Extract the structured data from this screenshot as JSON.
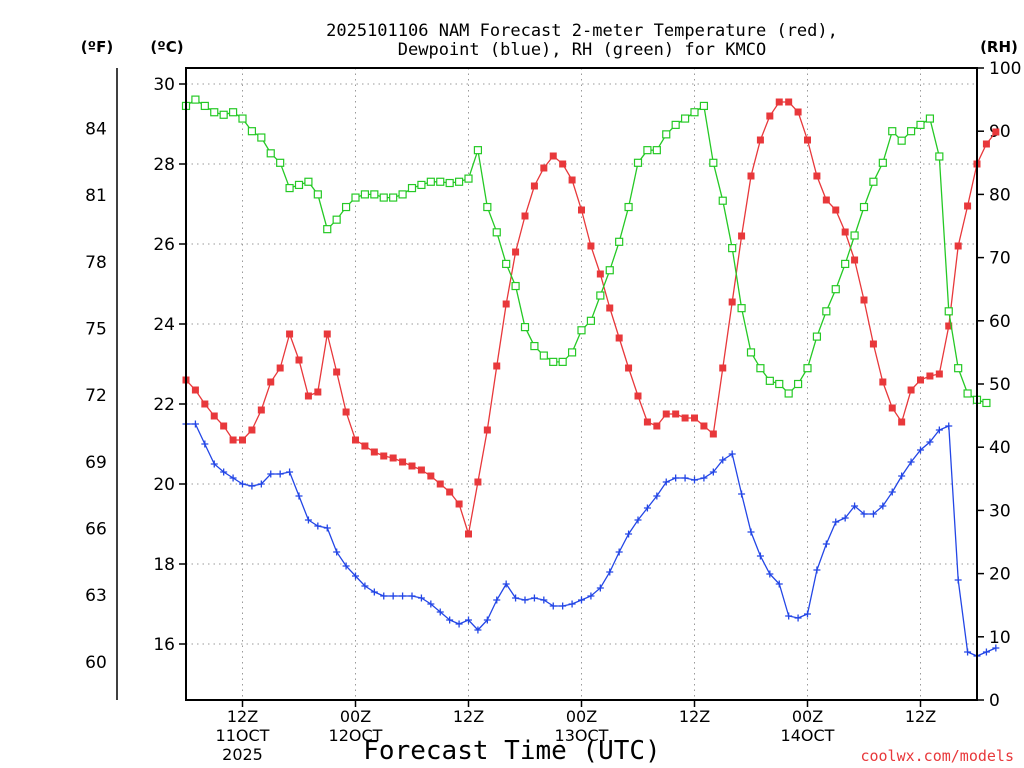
{
  "chart_data": {
    "type": "line",
    "title_line1": "2025101106 NAM Forecast 2-meter Temperature (red),",
    "title_line2": "Dewpoint (blue), RH (green) for KMCO",
    "unit_f": "(ºF)",
    "unit_c": "(ºC)",
    "unit_rh": "(RH)",
    "xlabel": "Forecast Time (UTC)",
    "credit": "coolwx.com/models",
    "x_range_hours": [
      0,
      84
    ],
    "ylim_c": [
      14.6,
      30.4
    ],
    "ylim_rh": [
      0,
      100
    ],
    "c_ticks": [
      "16",
      "18",
      "20",
      "22",
      "24",
      "26",
      "28",
      "30"
    ],
    "f_ticks": [
      "60",
      "63",
      "66",
      "69",
      "72",
      "75",
      "78",
      "81",
      "84"
    ],
    "rh_ticks": [
      "0",
      "10",
      "20",
      "30",
      "40",
      "50",
      "60",
      "70",
      "80",
      "90",
      "100"
    ],
    "x_ticks": [
      {
        "hour": 6,
        "line1": "12Z",
        "line2": "11OCT",
        "line3": "2025"
      },
      {
        "hour": 18,
        "line1": "00Z",
        "line2": "12OCT",
        "line3": ""
      },
      {
        "hour": 30,
        "line1": "12Z",
        "line2": "",
        "line3": ""
      },
      {
        "hour": 42,
        "line1": "00Z",
        "line2": "13OCT",
        "line3": ""
      },
      {
        "hour": 54,
        "line1": "12Z",
        "line2": "",
        "line3": ""
      },
      {
        "hour": 66,
        "line1": "00Z",
        "line2": "14OCT",
        "line3": ""
      },
      {
        "hour": 78,
        "line1": "12Z",
        "line2": "",
        "line3": ""
      }
    ],
    "series": [
      {
        "name": "Temperature",
        "units": "C",
        "color": "#e8383b",
        "marker": "filled-square",
        "values": [
          22.6,
          22.35,
          22.0,
          21.7,
          21.45,
          21.1,
          21.1,
          21.35,
          21.85,
          22.55,
          22.9,
          23.75,
          23.1,
          22.2,
          22.3,
          23.75,
          22.8,
          21.8,
          21.1,
          20.95,
          20.8,
          20.7,
          20.65,
          20.55,
          20.45,
          20.35,
          20.2,
          20.0,
          19.8,
          19.5,
          18.75,
          20.05,
          21.35,
          22.95,
          24.5,
          25.8,
          26.7,
          27.45,
          27.9,
          28.2,
          28.0,
          27.6,
          26.85,
          25.95,
          25.25,
          24.4,
          23.65,
          22.9,
          22.2,
          21.55,
          21.45,
          21.75,
          21.75,
          21.65,
          21.65,
          21.45,
          21.25,
          22.9,
          24.55,
          26.2,
          27.7,
          28.6,
          29.2,
          29.55,
          29.55,
          29.3,
          28.6,
          27.7,
          27.1,
          26.85,
          26.3,
          25.6,
          24.6,
          23.5,
          22.55,
          21.9,
          21.55,
          22.35,
          22.6,
          22.7,
          22.75,
          23.95,
          25.95,
          26.95,
          28.0,
          28.5,
          28.8
        ]
      },
      {
        "name": "Dewpoint",
        "units": "C",
        "color": "#2346e6",
        "marker": "plus",
        "values": [
          21.5,
          21.5,
          21.0,
          20.5,
          20.3,
          20.15,
          20.0,
          19.95,
          20.0,
          20.25,
          20.25,
          20.3,
          19.7,
          19.1,
          18.95,
          18.9,
          18.3,
          17.95,
          17.7,
          17.45,
          17.3,
          17.2,
          17.2,
          17.2,
          17.2,
          17.15,
          17.0,
          16.8,
          16.6,
          16.5,
          16.6,
          16.35,
          16.6,
          17.1,
          17.5,
          17.15,
          17.1,
          17.15,
          17.1,
          16.95,
          16.95,
          17.0,
          17.1,
          17.2,
          17.4,
          17.8,
          18.3,
          18.75,
          19.1,
          19.4,
          19.7,
          20.05,
          20.15,
          20.15,
          20.1,
          20.15,
          20.3,
          20.6,
          20.75,
          19.75,
          18.8,
          18.2,
          17.75,
          17.5,
          16.7,
          16.65,
          16.75,
          17.85,
          18.5,
          19.05,
          19.15,
          19.45,
          19.25,
          19.25,
          19.45,
          19.8,
          20.2,
          20.55,
          20.85,
          21.05,
          21.35,
          21.45,
          17.6,
          15.8,
          15.7,
          15.8,
          15.9
        ]
      },
      {
        "name": "RH",
        "units": "%",
        "color": "#25c925",
        "marker": "open-square",
        "values": [
          94,
          95,
          94,
          93,
          92.6,
          93,
          92,
          90,
          89,
          86.5,
          85,
          81,
          81.5,
          82,
          80,
          74.5,
          76,
          78,
          79.5,
          80,
          80,
          79.5,
          79.5,
          80,
          81,
          81.5,
          82,
          82,
          81.8,
          82,
          82.5,
          87,
          78,
          74,
          69,
          65.5,
          59,
          56,
          54.5,
          53.5,
          53.5,
          55,
          58.5,
          60,
          64,
          68,
          72.5,
          78,
          85,
          87,
          87,
          89.5,
          91,
          92,
          93,
          94,
          85,
          79,
          71.5,
          62,
          55,
          52.5,
          50.5,
          50,
          48.5,
          50,
          52.5,
          57.5,
          61.5,
          65,
          69,
          73.5,
          78,
          82,
          85,
          90,
          88.5,
          90,
          91,
          92,
          86,
          61.5,
          52.5,
          48.5,
          47.5,
          47
        ]
      }
    ]
  }
}
